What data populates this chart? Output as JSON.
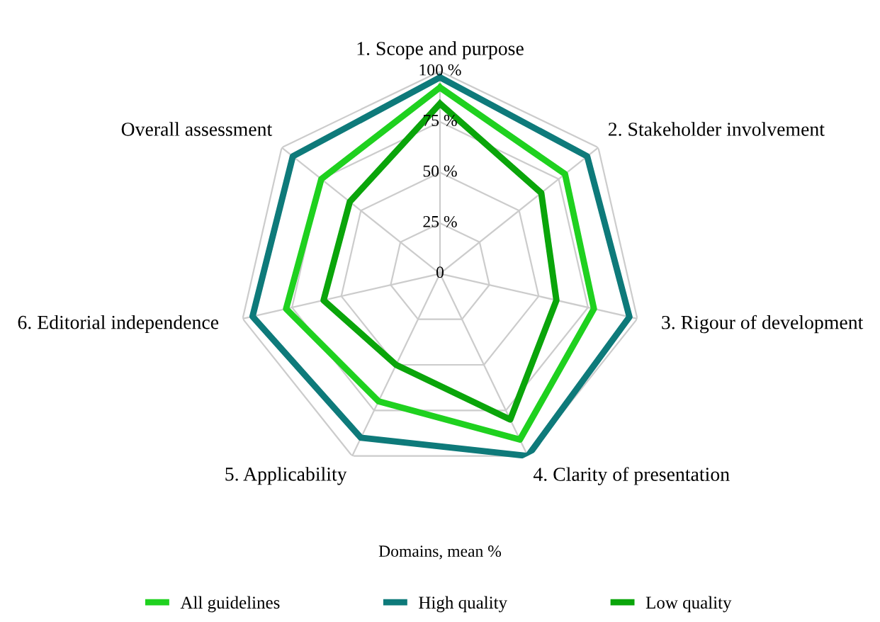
{
  "chart_data": {
    "type": "radar",
    "xlabel": "Domains, mean %",
    "categories": [
      "1. Scope and purpose",
      "2. Stakeholder involvement",
      "3. Rigour of development",
      "4. Clarity of presentation",
      "5. Applicability",
      "6. Editorial independence",
      "Overall assessment"
    ],
    "series": [
      {
        "name": "All guidelines",
        "color": "#1fd11f",
        "values": [
          92,
          79,
          78,
          91,
          70,
          78,
          75
        ]
      },
      {
        "name": "High quality",
        "color": "#0e7a7a",
        "values": [
          97,
          93,
          96,
          100,
          90,
          95,
          93
        ]
      },
      {
        "name": "Low quality",
        "color": "#0aa50a",
        "values": [
          84,
          64,
          59,
          80,
          50,
          59,
          57
        ]
      }
    ],
    "ylim": [
      0,
      100
    ],
    "yticks": [
      0,
      {
        "value": 25,
        "label": "25 %"
      },
      {
        "value": 50,
        "label": "50 %"
      },
      {
        "value": 75,
        "label": "75 %"
      },
      {
        "value": 100,
        "label": "100 %"
      }
    ],
    "grid": true,
    "legend": "bottom",
    "line_style": "solid",
    "marker": "none"
  }
}
